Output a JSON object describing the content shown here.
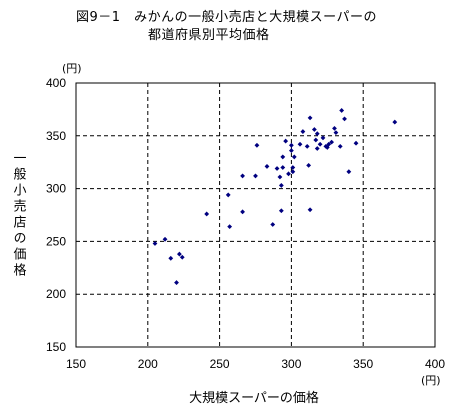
{
  "title_line1": "図9－1　みかんの一般小売店と大規模スーパーの",
  "title_line2": "都道府県別平均価格",
  "chart_data": {
    "type": "scatter",
    "title": "図9－1　みかんの一般小売店と大規模スーパーの 都道府県別平均価格",
    "xlabel": "大規模スーパーの価格",
    "ylabel": "一般小売店の価格",
    "x_unit": "(円)",
    "y_unit": "(円)",
    "xlim": [
      150,
      400
    ],
    "ylim": [
      150,
      400
    ],
    "xticks": [
      150,
      200,
      250,
      300,
      350,
      400
    ],
    "yticks": [
      150,
      200,
      250,
      300,
      350,
      400
    ],
    "grid": "dashed",
    "marker_color": "#000080",
    "points": [
      [
        205,
        248
      ],
      [
        212,
        252
      ],
      [
        216,
        234
      ],
      [
        220,
        211
      ],
      [
        222,
        238
      ],
      [
        224,
        235
      ],
      [
        241,
        276
      ],
      [
        256,
        294
      ],
      [
        257,
        264
      ],
      [
        266,
        278
      ],
      [
        266,
        312
      ],
      [
        275,
        312
      ],
      [
        276,
        341
      ],
      [
        283,
        321
      ],
      [
        287,
        266
      ],
      [
        290,
        319
      ],
      [
        292,
        311
      ],
      [
        293,
        303
      ],
      [
        293,
        279
      ],
      [
        294,
        320
      ],
      [
        294,
        330
      ],
      [
        296,
        345
      ],
      [
        298,
        314
      ],
      [
        300,
        341
      ],
      [
        300,
        336
      ],
      [
        301,
        320
      ],
      [
        301,
        316
      ],
      [
        302,
        330
      ],
      [
        306,
        342
      ],
      [
        308,
        354
      ],
      [
        311,
        340
      ],
      [
        312,
        322
      ],
      [
        313,
        280
      ],
      [
        313,
        367
      ],
      [
        316,
        356
      ],
      [
        317,
        346
      ],
      [
        318,
        352
      ],
      [
        318,
        338
      ],
      [
        320,
        342
      ],
      [
        322,
        348
      ],
      [
        324,
        340
      ],
      [
        325,
        339
      ],
      [
        326,
        342
      ],
      [
        328,
        344
      ],
      [
        330,
        357
      ],
      [
        331,
        353
      ],
      [
        334,
        340
      ],
      [
        335,
        374
      ],
      [
        337,
        366
      ],
      [
        340,
        316
      ],
      [
        345,
        343
      ],
      [
        372,
        363
      ]
    ]
  }
}
